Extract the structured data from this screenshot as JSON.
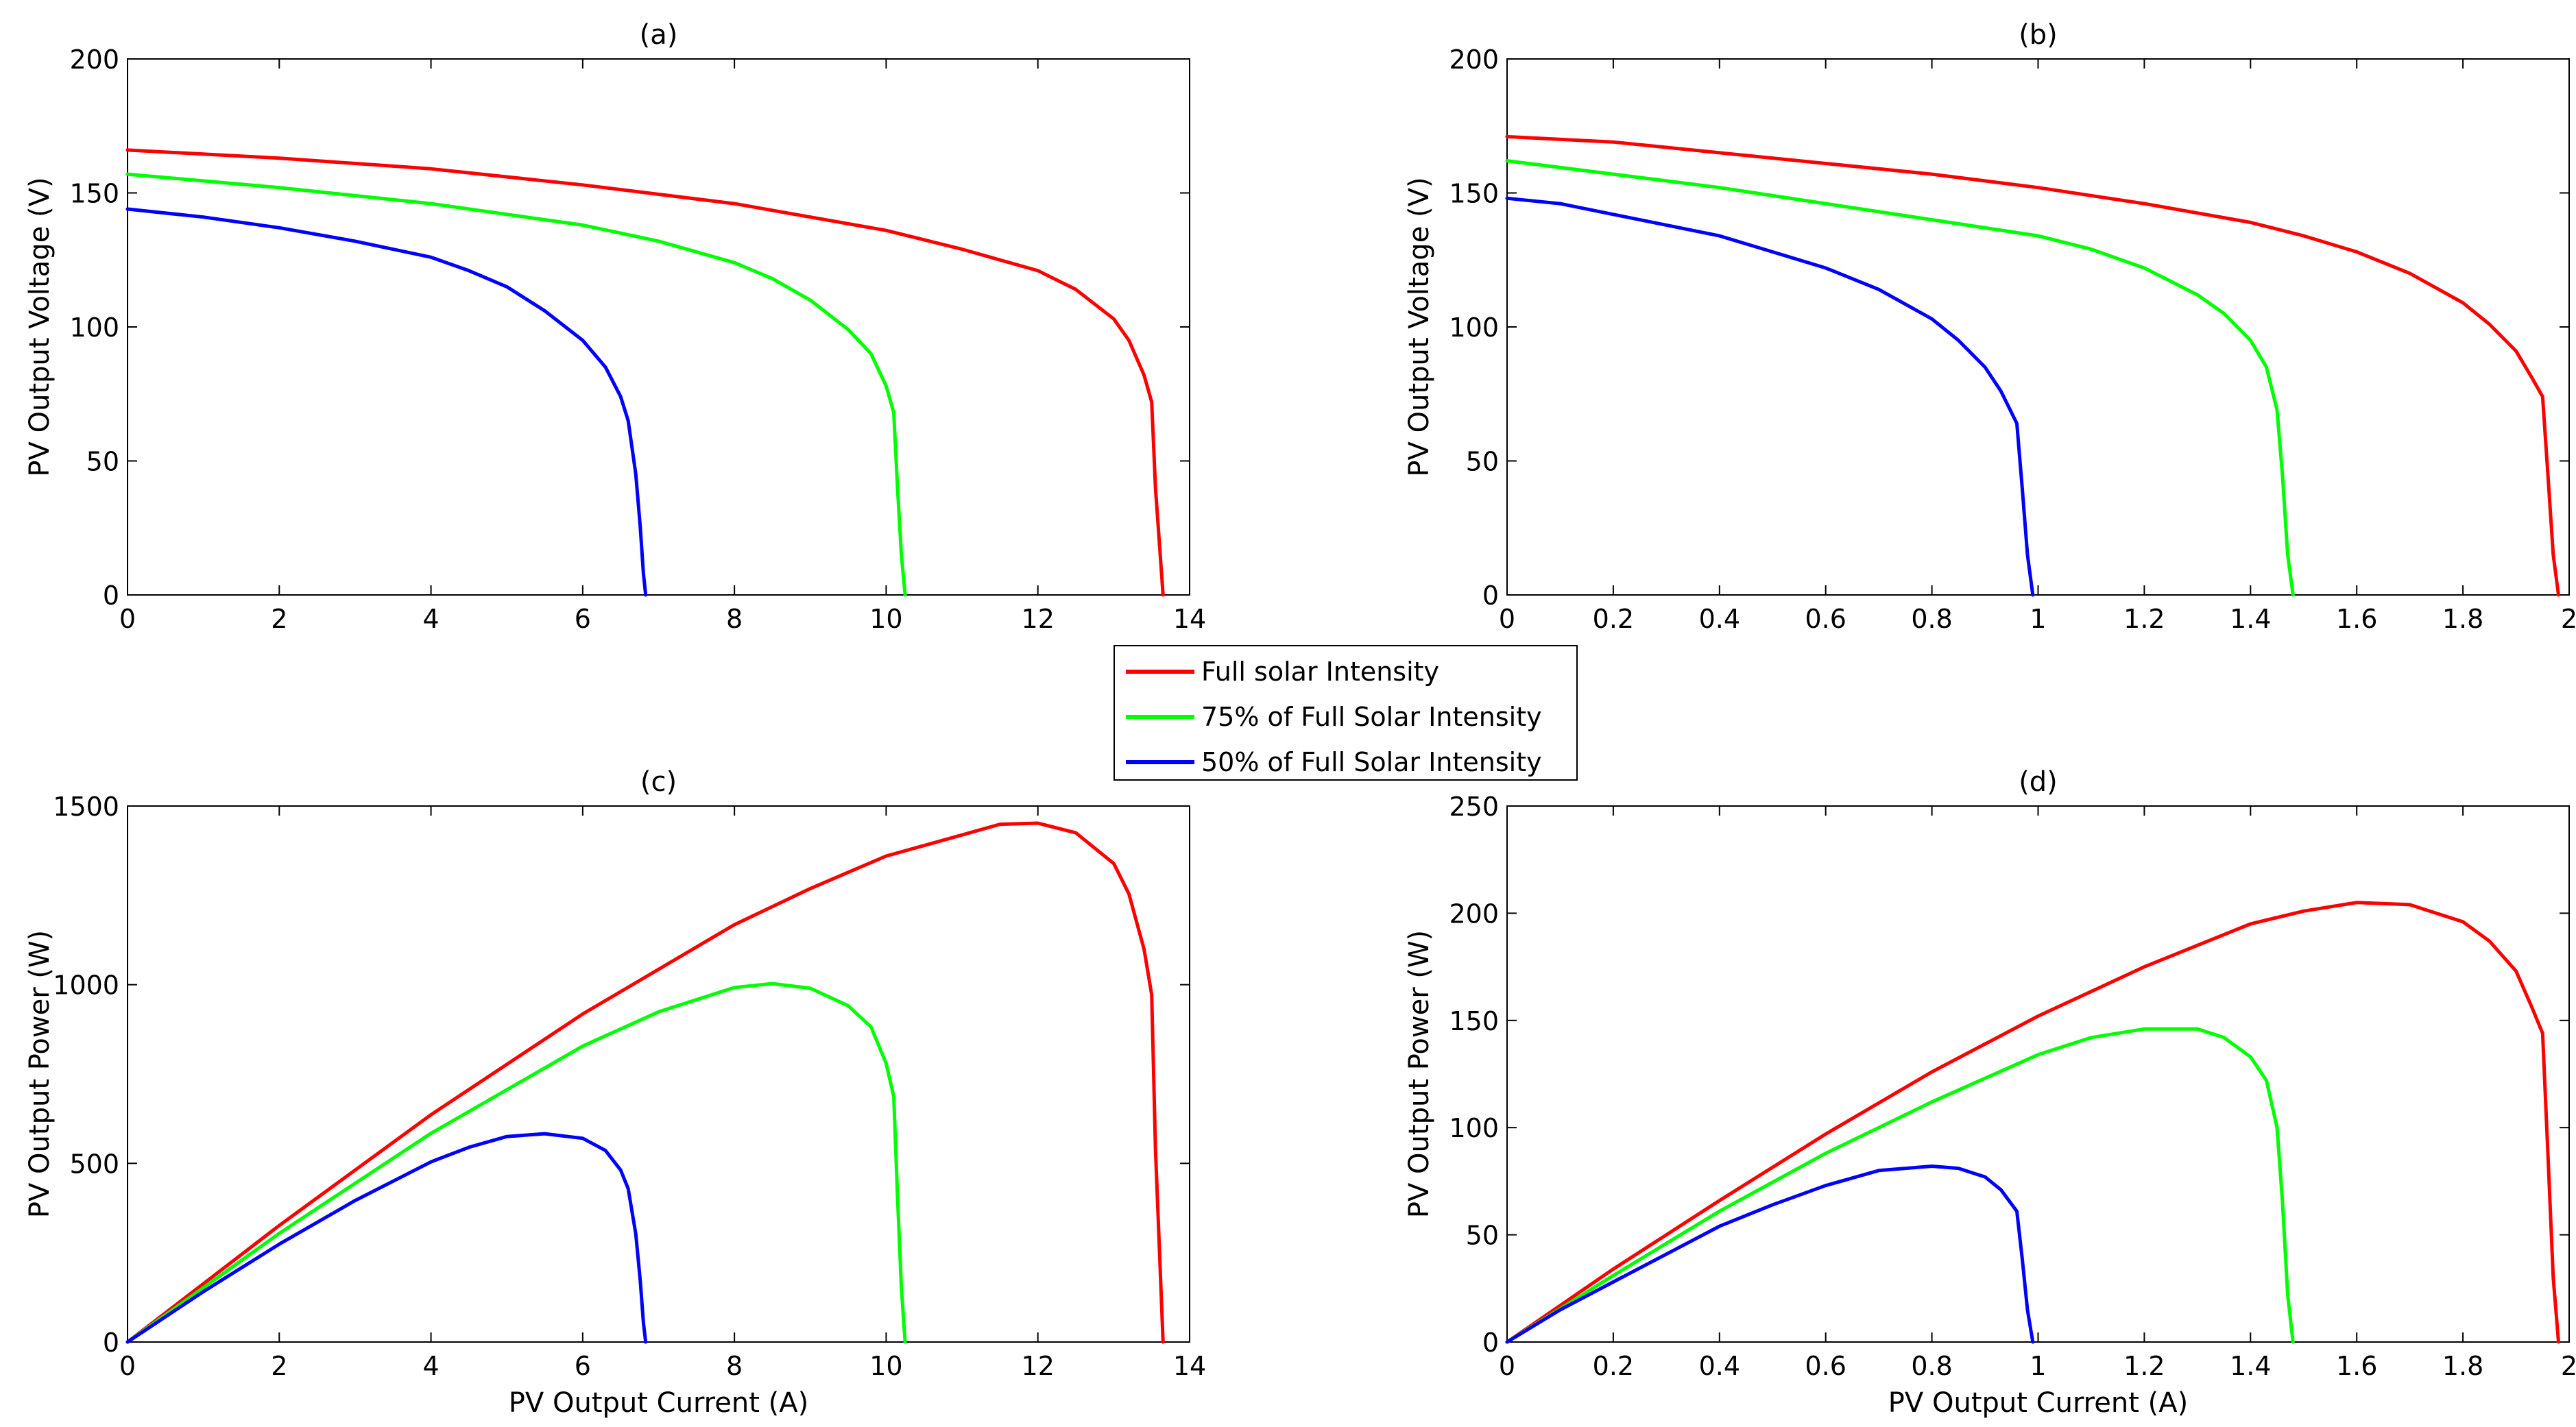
{
  "legend": {
    "placement": "center",
    "entries": [
      {
        "label": "Full solar Intensity",
        "color": "#ff0000"
      },
      {
        "label": "75% of Full Solar Intensity",
        "color": "#00ff00"
      },
      {
        "label": "50% of Full Solar Intensity",
        "color": "#0000ff"
      }
    ]
  },
  "chart_data": [
    {
      "type": "line",
      "title": "(a)",
      "xlabel": "",
      "ylabel": "PV Output Voltage (V)",
      "xlim": [
        0,
        14
      ],
      "ylim": [
        0,
        200
      ],
      "xticks": [
        0,
        2,
        4,
        6,
        8,
        10,
        12,
        14
      ],
      "xtick_labels": [
        "0",
        "2",
        "4",
        "6",
        "8",
        "10",
        "12",
        "14"
      ],
      "yticks": [
        0,
        50,
        100,
        150,
        200
      ],
      "ytick_labels": [
        "0",
        "50",
        "100",
        "150",
        "200"
      ],
      "grid": false,
      "series": [
        {
          "name": "Full solar Intensity",
          "color": "#ff0000",
          "x": [
            0,
            2,
            4,
            6,
            8,
            9,
            10,
            11,
            12,
            12.5,
            13,
            13.2,
            13.4,
            13.5,
            13.55,
            13.65
          ],
          "y": [
            166,
            163,
            159,
            153,
            146,
            141,
            136,
            129,
            121,
            114,
            103,
            95,
            82,
            72,
            40,
            0
          ]
        },
        {
          "name": "75% of Full Solar Intensity",
          "color": "#00ff00",
          "x": [
            0,
            2,
            4,
            6,
            7,
            8,
            8.5,
            9,
            9.5,
            9.8,
            10.0,
            10.1,
            10.15,
            10.2,
            10.25
          ],
          "y": [
            157,
            152,
            146,
            138,
            132,
            124,
            118,
            110,
            99,
            90,
            78,
            68,
            40,
            15,
            0
          ]
        },
        {
          "name": "50% of Full Solar Intensity",
          "color": "#0000ff",
          "x": [
            0,
            1,
            2,
            3,
            4,
            4.5,
            5,
            5.5,
            6,
            6.3,
            6.5,
            6.6,
            6.7,
            6.73,
            6.76,
            6.8,
            6.83
          ],
          "y": [
            144,
            141,
            137,
            132,
            126,
            121,
            115,
            106,
            95,
            85,
            74,
            65,
            45,
            35,
            25,
            8,
            0
          ]
        }
      ]
    },
    {
      "type": "line",
      "title": "(b)",
      "xlabel": "",
      "ylabel": "PV Output Voltage (V)",
      "xlim": [
        0,
        2
      ],
      "ylim": [
        0,
        200
      ],
      "xticks": [
        0,
        0.2,
        0.4,
        0.6,
        0.8,
        1,
        1.2,
        1.4,
        1.6,
        1.8,
        2
      ],
      "xtick_labels": [
        "0",
        "0.2",
        "0.4",
        "0.6",
        "0.8",
        "1",
        "1.2",
        "1.4",
        "1.6",
        "1.8",
        "2"
      ],
      "yticks": [
        0,
        50,
        100,
        150,
        200
      ],
      "ytick_labels": [
        "0",
        "50",
        "100",
        "150",
        "200"
      ],
      "grid": false,
      "series": [
        {
          "name": "Full solar Intensity",
          "color": "#ff0000",
          "x": [
            0,
            0.2,
            0.4,
            0.6,
            0.8,
            1.0,
            1.2,
            1.4,
            1.5,
            1.6,
            1.7,
            1.8,
            1.85,
            1.9,
            1.93,
            1.95,
            1.96,
            1.97,
            1.98
          ],
          "y": [
            171,
            169,
            165,
            161,
            157,
            152,
            146,
            139,
            134,
            128,
            120,
            109,
            101,
            91,
            81,
            74,
            45,
            15,
            0
          ]
        },
        {
          "name": "75% of Full Solar Intensity",
          "color": "#00ff00",
          "x": [
            0,
            0.2,
            0.4,
            0.6,
            0.8,
            1.0,
            1.1,
            1.2,
            1.3,
            1.35,
            1.4,
            1.43,
            1.45,
            1.46,
            1.47,
            1.48
          ],
          "y": [
            162,
            157,
            152,
            146,
            140,
            134,
            129,
            122,
            112,
            105,
            95,
            85,
            69,
            45,
            15,
            0
          ]
        },
        {
          "name": "50% of Full Solar Intensity",
          "color": "#0000ff",
          "x": [
            0,
            0.1,
            0.2,
            0.3,
            0.4,
            0.5,
            0.6,
            0.7,
            0.8,
            0.85,
            0.9,
            0.93,
            0.96,
            0.97,
            0.98,
            0.99
          ],
          "y": [
            148,
            146,
            142,
            138,
            134,
            128,
            122,
            114,
            103,
            95,
            85,
            76,
            64,
            40,
            15,
            0
          ]
        }
      ]
    },
    {
      "type": "line",
      "title": "(c)",
      "xlabel": "PV Output Current (A)",
      "ylabel": "PV Output Power (W)",
      "xlim": [
        0,
        14
      ],
      "ylim": [
        0,
        1500
      ],
      "xticks": [
        0,
        2,
        4,
        6,
        8,
        10,
        12,
        14
      ],
      "xtick_labels": [
        "0",
        "2",
        "4",
        "6",
        "8",
        "10",
        "12",
        "14"
      ],
      "yticks": [
        0,
        500,
        1000,
        1500
      ],
      "ytick_labels": [
        "0",
        "500",
        "1000",
        "1500"
      ],
      "grid": false,
      "series": [
        {
          "name": "Full solar Intensity",
          "color": "#ff0000",
          "x": [
            0,
            2,
            4,
            6,
            8,
            9,
            10,
            11,
            11.5,
            12,
            12.5,
            13,
            13.2,
            13.4,
            13.5,
            13.55,
            13.65
          ],
          "y": [
            0,
            326,
            636,
            918,
            1168,
            1269,
            1360,
            1419,
            1449,
            1452,
            1425,
            1339,
            1254,
            1099,
            972,
            540,
            0
          ]
        },
        {
          "name": "75% of Full Solar Intensity",
          "color": "#00ff00",
          "x": [
            0,
            2,
            4,
            6,
            7,
            8,
            8.5,
            9,
            9.5,
            9.8,
            10.0,
            10.1,
            10.15,
            10.2,
            10.25
          ],
          "y": [
            0,
            304,
            584,
            828,
            924,
            992,
            1003,
            990,
            941,
            882,
            780,
            687,
            406,
            153,
            0
          ]
        },
        {
          "name": "50% of Full Solar Intensity",
          "color": "#0000ff",
          "x": [
            0,
            1,
            2,
            3,
            4,
            4.5,
            5,
            5.5,
            6,
            6.3,
            6.5,
            6.6,
            6.7,
            6.73,
            6.76,
            6.8,
            6.83
          ],
          "y": [
            0,
            141,
            274,
            396,
            504,
            545,
            575,
            583,
            570,
            536,
            481,
            429,
            302,
            236,
            169,
            54,
            0
          ]
        }
      ]
    },
    {
      "type": "line",
      "title": "(d)",
      "xlabel": "PV Output Current (A)",
      "ylabel": "PV Output Power (W)",
      "xlim": [
        0,
        2
      ],
      "ylim": [
        0,
        250
      ],
      "xticks": [
        0,
        0.2,
        0.4,
        0.6,
        0.8,
        1,
        1.2,
        1.4,
        1.6,
        1.8,
        2
      ],
      "xtick_labels": [
        "0",
        "0.2",
        "0.4",
        "0.6",
        "0.8",
        "1",
        "1.2",
        "1.4",
        "1.6",
        "1.8",
        "2"
      ],
      "yticks": [
        0,
        50,
        100,
        150,
        200,
        250
      ],
      "ytick_labels": [
        "0",
        "50",
        "100",
        "150",
        "200",
        "250"
      ],
      "grid": false,
      "series": [
        {
          "name": "Full solar Intensity",
          "color": "#ff0000",
          "x": [
            0,
            0.2,
            0.4,
            0.6,
            0.8,
            1.0,
            1.2,
            1.4,
            1.5,
            1.6,
            1.7,
            1.8,
            1.85,
            1.9,
            1.93,
            1.95,
            1.96,
            1.97,
            1.98
          ],
          "y": [
            0,
            34,
            66,
            97,
            126,
            152,
            175,
            195,
            201,
            205,
            204,
            196,
            187,
            173,
            156,
            144,
            88,
            30,
            0
          ]
        },
        {
          "name": "75% of Full Solar Intensity",
          "color": "#00ff00",
          "x": [
            0,
            0.2,
            0.4,
            0.6,
            0.8,
            1.0,
            1.1,
            1.2,
            1.3,
            1.35,
            1.4,
            1.43,
            1.45,
            1.46,
            1.47,
            1.48
          ],
          "y": [
            0,
            31,
            61,
            88,
            112,
            134,
            142,
            146,
            146,
            142,
            133,
            122,
            100,
            66,
            22,
            0
          ]
        },
        {
          "name": "50% of Full Solar Intensity",
          "color": "#0000ff",
          "x": [
            0,
            0.1,
            0.2,
            0.3,
            0.4,
            0.5,
            0.6,
            0.7,
            0.8,
            0.85,
            0.9,
            0.93,
            0.96,
            0.97,
            0.98,
            0.99
          ],
          "y": [
            0,
            15,
            28,
            41,
            54,
            64,
            73,
            80,
            82,
            81,
            77,
            71,
            61,
            39,
            15,
            0
          ]
        }
      ]
    }
  ]
}
